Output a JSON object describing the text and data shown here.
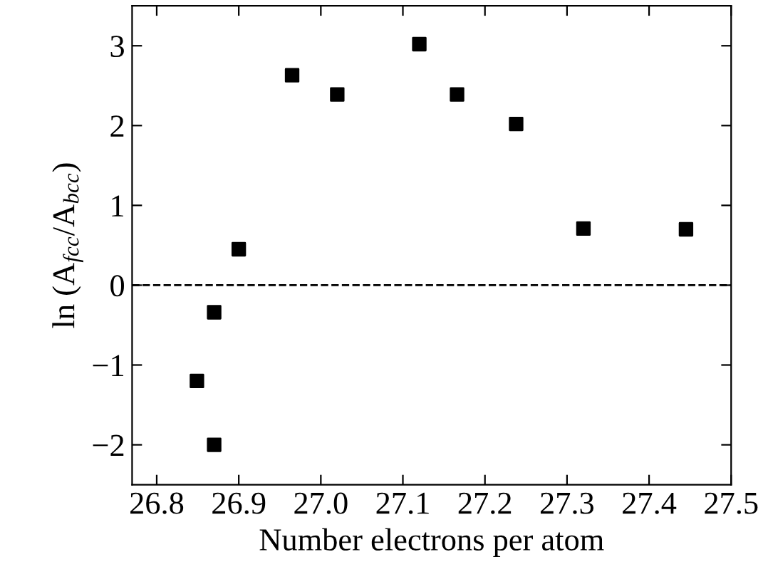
{
  "chart_data": {
    "type": "scatter",
    "xlabel": "Number electrons per atom",
    "ylabel": "ln (A$_{fcc}$/A$_{bcc}$)",
    "x": [
      26.849,
      26.87,
      26.87,
      26.9,
      26.965,
      27.02,
      27.12,
      27.166,
      27.238,
      27.32,
      27.445
    ],
    "series": [
      {
        "color": "#000000",
        "values": [
          -1.2,
          -0.34,
          -2.0,
          0.45,
          2.63,
          2.39,
          3.02,
          2.39,
          2.02,
          0.71,
          0.7
        ]
      }
    ],
    "marker": "square",
    "xlim": [
      26.77,
      27.5
    ],
    "ylim": [
      -2.5,
      3.5
    ],
    "xticks": [
      26.8,
      26.9,
      {
        "value": 27,
        "label": "27.0"
      },
      27.1,
      27.2,
      27.3,
      27.4,
      27.5
    ],
    "yticks": [
      -2,
      -1,
      0,
      1,
      2,
      3
    ],
    "ref_lines": [
      {
        "axis": "y",
        "value": 0,
        "color": "#000000",
        "line_style": "dashed"
      }
    ],
    "grid": false,
    "legend": false
  }
}
